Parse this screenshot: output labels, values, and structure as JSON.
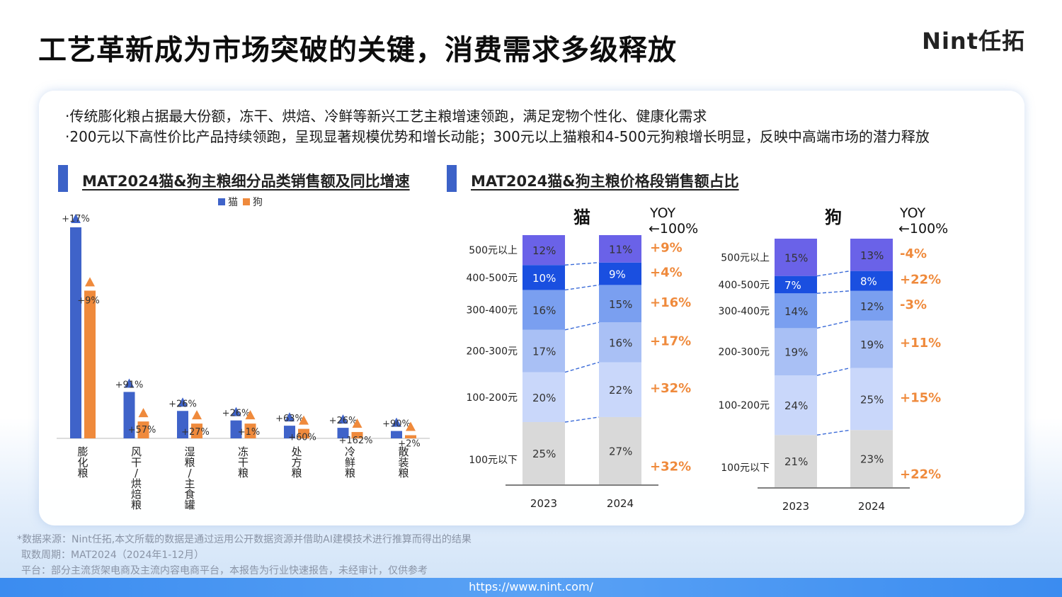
{
  "header": {
    "title": "工艺革新成为市场突破的关键，消费需求多级释放",
    "brand": "Nint任拓"
  },
  "bullets": [
    "·传统膨化粮占据最大份额，冻干、烘焙、冷鲜等新兴工艺主粮增速领跑，满足宠物个性化、健康化需求",
    "·200元以下高性价比产品持续领跑，呈现显著规模优势和增长动能；300元以上猫粮和4-500元狗粮增长明显，反映中高端市场的潜力释放"
  ],
  "sections": {
    "left_title": "MAT2024猫&狗主粮细分品类销售额及同比增速",
    "right_title": "MAT2024猫&狗主粮价格段销售额占比"
  },
  "colors": {
    "cat": "#3f63c9",
    "dog": "#ef8a3c",
    "yoy": "#ef8a3c"
  },
  "chart_data": [
    {
      "type": "bar",
      "title": "MAT2024猫&狗主粮细分品类销售额及同比增速",
      "legend": [
        "猫",
        "狗"
      ],
      "legend_position": "top",
      "categories": [
        "膨化粮",
        "风干/烘焙粮",
        "湿粮/主食罐",
        "冻干粮",
        "处方粮",
        "冷鲜粮",
        "散装粮"
      ],
      "category_labels": [
        [
          "膨",
          "化",
          "粮"
        ],
        [
          "风",
          "干",
          "/",
          "烘",
          "焙",
          "粮"
        ],
        [
          "湿",
          "粮",
          "/",
          "主",
          "食",
          "罐"
        ],
        [
          "冻",
          "干",
          "粮"
        ],
        [
          "处",
          "方",
          "粮"
        ],
        [
          "冷",
          "鲜",
          "粮"
        ],
        [
          "散",
          "装",
          "粮"
        ]
      ],
      "series": [
        {
          "name": "猫",
          "values": [
            100,
            22,
            13,
            8.5,
            6,
            5,
            3.5
          ],
          "labels": [
            "+17%",
            "+91%",
            "+26%",
            "+26%",
            "+63%",
            "+26%",
            "+90%"
          ]
        },
        {
          "name": "狗",
          "values": [
            70,
            8,
            7,
            7,
            4.5,
            3,
            1.5
          ],
          "labels": [
            "+9%",
            "+57%",
            "+27%",
            "+1%",
            "+60%",
            "+162%",
            "+2%"
          ]
        }
      ],
      "ylim": [
        0,
        105
      ]
    },
    {
      "type": "bar",
      "stacked": true,
      "title": "猫",
      "yoy_header": [
        "YOY",
        "←100%"
      ],
      "categories": [
        "2023",
        "2024"
      ],
      "segments": [
        "100元以下",
        "100-200元",
        "200-300元",
        "300-400元",
        "400-500元",
        "500元以上"
      ],
      "segment_labels": [
        "100元以下",
        "100-200元",
        "200-300元",
        "300-400元",
        "400-500元",
        "500元以上"
      ],
      "series": [
        {
          "name": "100元以下",
          "values": [
            25,
            27
          ]
        },
        {
          "name": "100-200元",
          "values": [
            20,
            22
          ]
        },
        {
          "name": "200-300元",
          "values": [
            17,
            16
          ]
        },
        {
          "name": "300-400元",
          "values": [
            16,
            15
          ]
        },
        {
          "name": "400-500元",
          "values": [
            10,
            9
          ]
        },
        {
          "name": "500元以上",
          "values": [
            12,
            11
          ]
        }
      ],
      "yoy": [
        "+32%",
        "+32%",
        "+17%",
        "+16%",
        "+4%",
        "+9%"
      ]
    },
    {
      "type": "bar",
      "stacked": true,
      "title": "狗",
      "yoy_header": [
        "YOY",
        "←100%"
      ],
      "categories": [
        "2023",
        "2024"
      ],
      "segments": [
        "100元以下",
        "100-200元",
        "200-300元",
        "300-400元",
        "400-500元",
        "500元以上"
      ],
      "segment_labels": [
        "100元以下",
        "100-200元",
        "200-300元",
        "300-400元",
        "400-500元",
        "500元以上"
      ],
      "series": [
        {
          "name": "100元以下",
          "values": [
            21,
            23
          ]
        },
        {
          "name": "100-200元",
          "values": [
            24,
            25
          ]
        },
        {
          "name": "200-300元",
          "values": [
            19,
            19
          ]
        },
        {
          "name": "300-400元",
          "values": [
            14,
            12
          ]
        },
        {
          "name": "400-500元",
          "values": [
            7,
            8
          ]
        },
        {
          "name": "500元以上",
          "values": [
            15,
            13
          ]
        }
      ],
      "yoy": [
        "+22%",
        "+15%",
        "+11%",
        "-3%",
        "+22%",
        "-4%"
      ]
    }
  ],
  "footer": {
    "source": "*数据来源：Nint任拓,本文所载的数据是通过运用公开数据资源并借助AI建模技术进行推算而得出的结果",
    "period": "取数周期：MAT2024（2024年1-12月）",
    "platform": "平台：部分主流货架电商及主流内容电商平台，本报告为行业快速报告，未经审计，仅供参考",
    "url": "https://www.nint.com/"
  }
}
